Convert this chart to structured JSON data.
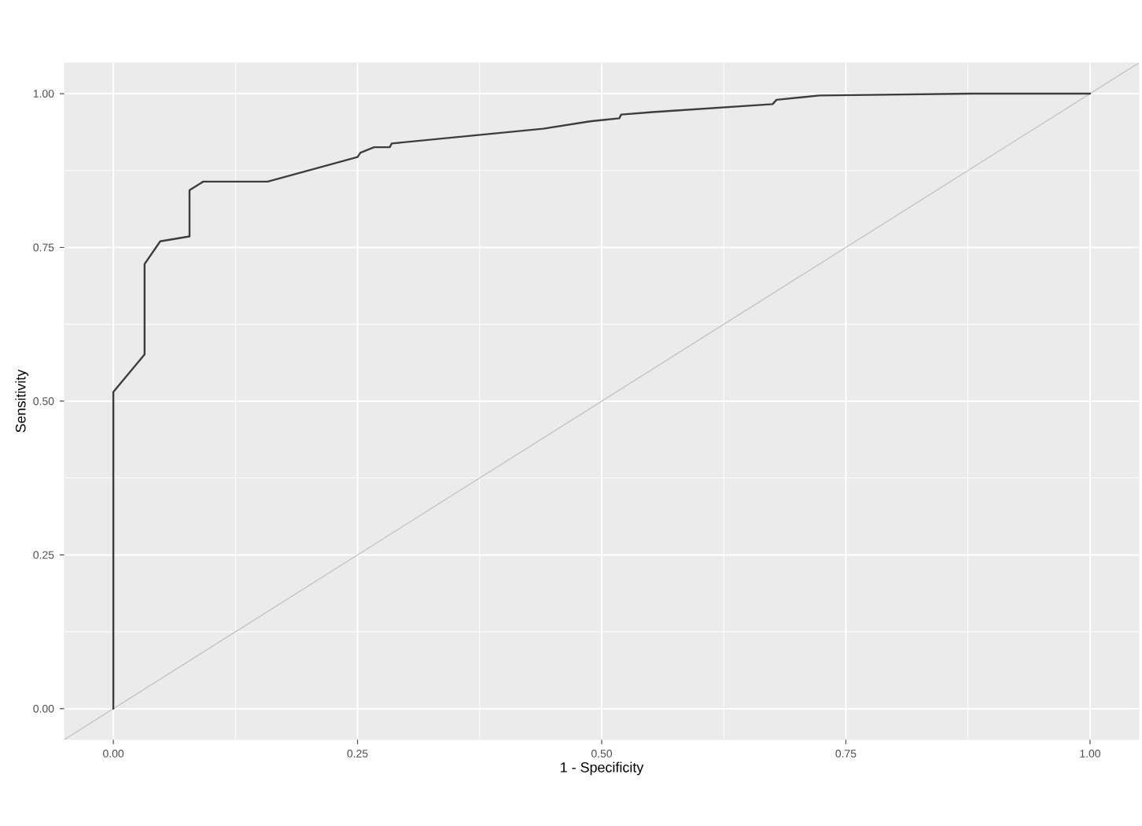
{
  "chart_data": {
    "type": "line",
    "xlabel": "1 - Specificity",
    "ylabel": "Sensitivity",
    "series": [
      {
        "x": [
          0,
          0,
          0.032,
          0.032,
          0.048,
          0.078,
          0.078,
          0.092,
          0.158,
          0.25,
          0.253,
          0.267,
          0.283,
          0.285,
          0.44,
          0.488,
          0.518,
          0.52,
          0.552,
          0.675,
          0.679,
          0.723,
          0.88,
          1.0
        ],
        "values": [
          0,
          0.515,
          0.576,
          0.723,
          0.76,
          0.768,
          0.843,
          0.857,
          0.857,
          0.897,
          0.904,
          0.913,
          0.913,
          0.919,
          0.943,
          0.955,
          0.96,
          0.966,
          0.97,
          0.983,
          0.99,
          0.997,
          1.0,
          1.0
        ],
        "color": "#3d3d3d"
      },
      {
        "x": [
          -0.05,
          1.05
        ],
        "values": [
          -0.05,
          1.05
        ],
        "color": "#c4c4c4"
      }
    ],
    "xlim": [
      -0.05,
      1.05
    ],
    "ylim": [
      -0.05,
      1.05
    ],
    "xticks": [
      {
        "value": 0,
        "label": "0.00"
      },
      {
        "value": 0.25,
        "label": "0.25"
      },
      {
        "value": 0.5,
        "label": "0.50"
      },
      {
        "value": 0.75,
        "label": "0.75"
      },
      {
        "value": 1,
        "label": "1.00"
      }
    ],
    "yticks": [
      {
        "value": 0,
        "label": "0.00"
      },
      {
        "value": 0.25,
        "label": "0.25"
      },
      {
        "value": 0.5,
        "label": "0.50"
      },
      {
        "value": 0.75,
        "label": "0.75"
      },
      {
        "value": 1,
        "label": "1.00"
      }
    ],
    "grid": true
  }
}
